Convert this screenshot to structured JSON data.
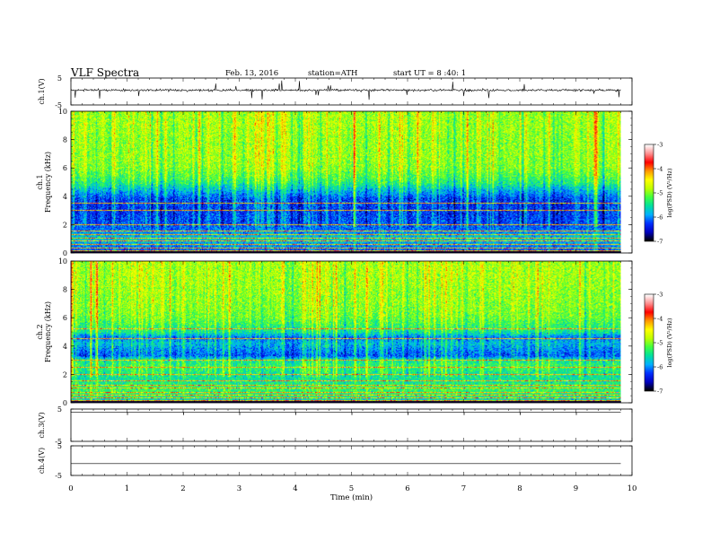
{
  "header": {
    "title": "VLF  Spectra",
    "date": "Feb. 13, 2016",
    "station": "station=ATH",
    "start": "start  UT  =   8  :40: 1"
  },
  "colors": {
    "colormap": [
      "#000000",
      "#0000c0",
      "#0030ff",
      "#00b0ff",
      "#00e0a0",
      "#40ff40",
      "#c0ff00",
      "#ffff00",
      "#ff9900",
      "#ff0000",
      "#ff9090",
      "#ffffff"
    ],
    "trace": "#000000"
  },
  "chart_data": [
    {
      "type": "line",
      "name": "ch.1 waveform",
      "ylabel": "ch.1(V)",
      "ylim": [
        -5,
        5
      ],
      "yticks": [
        "5",
        "-5"
      ],
      "baseline": 0.5,
      "noise_amplitude": 0.4,
      "spike_amplitude": 2.2
    },
    {
      "type": "heatmap",
      "name": "ch.1 spectrogram",
      "ylabel_lines": [
        "ch.1",
        "Frequency  (kHz)"
      ],
      "ylim": [
        0,
        10
      ],
      "yticks": [
        "0",
        "2",
        "4",
        "6",
        "8",
        "10"
      ],
      "xlim": [
        0,
        9.8
      ],
      "colorbar": {
        "label": "log(PSD) (V²/Hz)",
        "ticks": [
          "-3",
          "-4",
          "-5",
          "-6",
          "-7"
        ],
        "range": [
          -7,
          -3
        ]
      },
      "profile_khz": [
        [
          0,
          -6.3
        ],
        [
          0.5,
          -6.0
        ],
        [
          1.0,
          -5.7
        ],
        [
          1.6,
          -6.1
        ],
        [
          2.0,
          -6.2
        ],
        [
          3.0,
          -6.3
        ],
        [
          3.8,
          -6.25
        ],
        [
          4.3,
          -5.9
        ],
        [
          5.0,
          -5.35
        ],
        [
          6.0,
          -5.0
        ],
        [
          7.0,
          -4.95
        ],
        [
          8.0,
          -4.95
        ],
        [
          9.0,
          -4.9
        ],
        [
          10.0,
          -4.9
        ]
      ],
      "tonal_lines_khz": [
        0.15,
        0.35,
        0.55,
        0.8,
        1.0,
        1.3,
        1.5,
        2.0,
        3.0,
        3.5
      ]
    },
    {
      "type": "heatmap",
      "name": "ch.2 spectrogram",
      "ylabel_lines": [
        "ch.2",
        "Frequency  (kHz)"
      ],
      "ylim": [
        0,
        10
      ],
      "yticks": [
        "0",
        "2",
        "4",
        "6",
        "8",
        "10"
      ],
      "xlim": [
        0,
        9.8
      ],
      "colorbar": {
        "label": "log(PSD) (V²/Hz)",
        "ticks": [
          "-3",
          "-4",
          "-5",
          "-6",
          "-7"
        ],
        "range": [
          -7,
          -3
        ]
      },
      "profile_khz": [
        [
          0,
          -5.8
        ],
        [
          0.5,
          -5.4
        ],
        [
          1.0,
          -5.3
        ],
        [
          1.5,
          -5.5
        ],
        [
          2.0,
          -5.5
        ],
        [
          2.5,
          -5.3
        ],
        [
          3.0,
          -5.5
        ],
        [
          3.3,
          -6.2
        ],
        [
          3.8,
          -6.0
        ],
        [
          4.2,
          -5.8
        ],
        [
          4.6,
          -6.1
        ],
        [
          5.0,
          -5.5
        ],
        [
          6.0,
          -5.1
        ],
        [
          7.0,
          -5.0
        ],
        [
          8.0,
          -4.95
        ],
        [
          9.0,
          -4.9
        ],
        [
          10.0,
          -4.9
        ]
      ],
      "tonal_lines_khz": [
        0.1,
        0.3,
        0.5,
        0.7,
        1.0,
        1.2,
        1.5,
        2.0,
        2.5,
        3.0,
        4.5,
        5.2
      ]
    },
    {
      "type": "line",
      "name": "ch.3 waveform",
      "ylabel": "ch.3(V)",
      "ylim": [
        -5,
        5
      ],
      "yticks": [
        "5",
        "-5"
      ],
      "baseline": 4.0,
      "pulse_times_min": [
        1,
        2,
        3,
        4,
        5,
        6,
        7,
        8,
        9
      ]
    },
    {
      "type": "line",
      "name": "ch.4 waveform",
      "ylabel": "ch.4(V)",
      "ylim": [
        -5,
        5
      ],
      "yticks": [
        "5",
        "-5"
      ],
      "baseline": -1.0
    }
  ],
  "xaxis": {
    "label": "Time  (min)",
    "ticks": [
      "0",
      "1",
      "2",
      "3",
      "4",
      "5",
      "6",
      "7",
      "8",
      "9",
      "10"
    ],
    "range": [
      0,
      10
    ],
    "data_end": 9.8
  }
}
